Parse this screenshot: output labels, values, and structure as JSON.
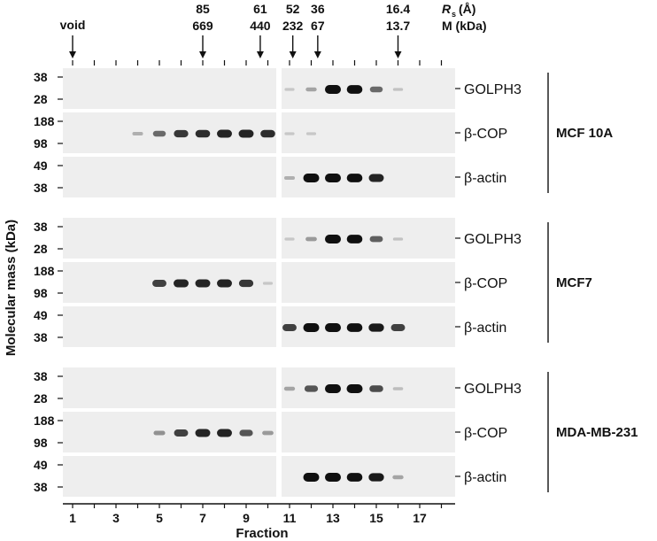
{
  "header": {
    "void_label": "void",
    "rs_symbol": "R",
    "rs_subscript": "s",
    "rs_unit": "(Å)",
    "mass_label": "M (kDa)",
    "markers": [
      {
        "rs": "85",
        "m": "669",
        "fraction": 7.0
      },
      {
        "rs": "61",
        "m": "440",
        "fraction": 9.65
      },
      {
        "rs": "52",
        "m": "232",
        "fraction": 11.15
      },
      {
        "rs": "36",
        "m": "67",
        "fraction": 12.3
      },
      {
        "rs": "16.4",
        "m": "13.7",
        "fraction": 16.0
      }
    ]
  },
  "y_axis_label": "Molecular mass (kDa)",
  "x_axis": {
    "label": "Fraction",
    "ticks": [
      "1",
      "3",
      "5",
      "7",
      "9",
      "11",
      "13",
      "15",
      "17"
    ],
    "tick_fractions": [
      1,
      3,
      5,
      7,
      9,
      11,
      13,
      15,
      17
    ],
    "fractions_total": 18
  },
  "cell_lines": [
    {
      "name": "MCF 10A",
      "blots": [
        {
          "protein": "GOLPH3",
          "mw_top": "38",
          "mw_bottom": "28",
          "bands": [
            0,
            0,
            0,
            0,
            0,
            0,
            0,
            0,
            0,
            0,
            0.03,
            0.2,
            1.0,
            0.95,
            0.5,
            0.05,
            0,
            0
          ]
        },
        {
          "protein": "β-COP",
          "mw_top": "188",
          "mw_bottom": "98",
          "bands": [
            0,
            0,
            0,
            0.15,
            0.5,
            0.75,
            0.8,
            0.85,
            0.85,
            0.8,
            0.03,
            0.03,
            0,
            0,
            0,
            0,
            0,
            0
          ]
        },
        {
          "protein": "β-actin",
          "mw_top": "49",
          "mw_bottom": "38",
          "bands": [
            0,
            0,
            0,
            0,
            0,
            0,
            0,
            0,
            0,
            0,
            0.15,
            1.0,
            1.0,
            0.95,
            0.85,
            0,
            0,
            0
          ]
        }
      ]
    },
    {
      "name": "MCF7",
      "blots": [
        {
          "protein": "GOLPH3",
          "mw_top": "38",
          "mw_bottom": "28",
          "bands": [
            0,
            0,
            0,
            0,
            0,
            0,
            0,
            0,
            0,
            0,
            0.03,
            0.25,
            1.0,
            0.95,
            0.55,
            0.05,
            0,
            0
          ]
        },
        {
          "protein": "β-COP",
          "mw_top": "188",
          "mw_bottom": "98",
          "bands": [
            0,
            0,
            0,
            0,
            0.7,
            0.85,
            0.85,
            0.85,
            0.75,
            0.03,
            0,
            0,
            0,
            0,
            0,
            0,
            0,
            0
          ]
        },
        {
          "protein": "β-actin",
          "mw_top": "49",
          "mw_bottom": "38",
          "bands": [
            0,
            0,
            0,
            0,
            0,
            0,
            0,
            0,
            0,
            0,
            0.7,
            1.0,
            1.0,
            0.95,
            0.9,
            0.7,
            0,
            0
          ]
        }
      ]
    },
    {
      "name": "MDA-MB-231",
      "blots": [
        {
          "protein": "GOLPH3",
          "mw_top": "38",
          "mw_bottom": "28",
          "bands": [
            0,
            0,
            0,
            0,
            0,
            0,
            0,
            0,
            0,
            0,
            0.2,
            0.6,
            1.0,
            1.0,
            0.65,
            0.08,
            0,
            0
          ]
        },
        {
          "protein": "β-COP",
          "mw_top": "188",
          "mw_bottom": "98",
          "bands": [
            0,
            0,
            0,
            0,
            0.3,
            0.7,
            0.85,
            0.85,
            0.6,
            0.25,
            0,
            0,
            0,
            0,
            0,
            0,
            0,
            0
          ]
        },
        {
          "protein": "β-actin",
          "mw_top": "49",
          "mw_bottom": "38",
          "bands": [
            0,
            0,
            0,
            0,
            0,
            0,
            0,
            0,
            0,
            0,
            0,
            1.0,
            1.0,
            0.95,
            0.9,
            0.2,
            0,
            0
          ]
        }
      ]
    }
  ],
  "colors": {
    "panel_background": "#eeeeee",
    "band": "#101010",
    "text": "#111111"
  }
}
